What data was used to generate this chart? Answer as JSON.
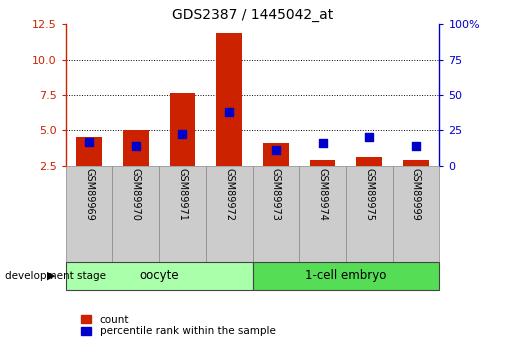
{
  "title": "GDS2387 / 1445042_at",
  "samples": [
    "GSM89969",
    "GSM89970",
    "GSM89971",
    "GSM89972",
    "GSM89973",
    "GSM89974",
    "GSM89975",
    "GSM89999"
  ],
  "count_values": [
    4.5,
    5.0,
    7.6,
    11.9,
    4.1,
    2.9,
    3.1,
    2.9
  ],
  "percentile_values": [
    17,
    14,
    22,
    38,
    11,
    16,
    20,
    14
  ],
  "count_base": 2.5,
  "left_ylim": [
    2.5,
    12.5
  ],
  "left_yticks": [
    2.5,
    5.0,
    7.5,
    10.0,
    12.5
  ],
  "right_ylim": [
    0,
    100
  ],
  "right_yticks": [
    0,
    25,
    50,
    75,
    100
  ],
  "right_ylabels": [
    "0",
    "25",
    "50",
    "75",
    "100%"
  ],
  "groups": [
    {
      "label": "oocyte",
      "indices": [
        0,
        1,
        2,
        3
      ],
      "color": "#aaffaa"
    },
    {
      "label": "1-cell embryo",
      "indices": [
        4,
        5,
        6,
        7
      ],
      "color": "#55dd55"
    }
  ],
  "bar_color": "#CC2200",
  "percentile_color": "#0000CC",
  "bar_width": 0.55,
  "percentile_marker_size": 28,
  "grid_yticks": [
    5.0,
    7.5,
    10.0
  ],
  "grid_color": "black",
  "left_axis_color": "#CC2200",
  "right_axis_color": "#0000CC",
  "background_color": "#ffffff",
  "sample_label_bg": "#cccccc",
  "dev_stage_label": "development stage",
  "legend_count_label": "count",
  "legend_percentile_label": "percentile rank within the sample",
  "fig_width": 5.05,
  "fig_height": 3.45,
  "dpi": 100
}
